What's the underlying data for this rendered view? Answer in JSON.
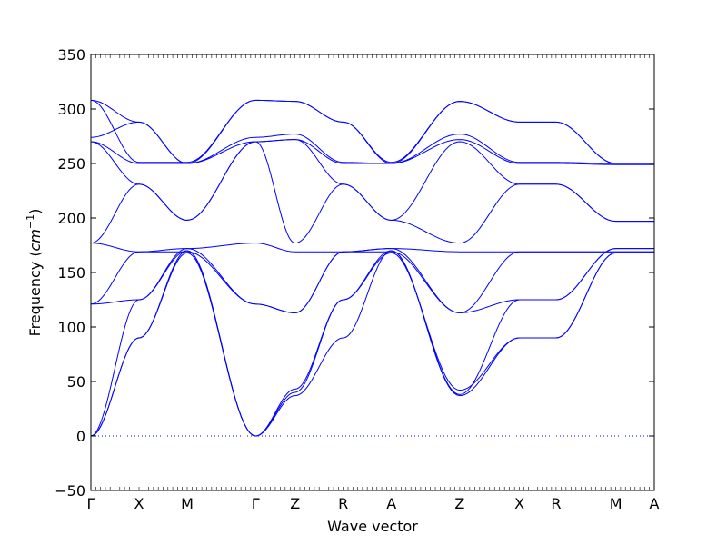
{
  "chart_data": {
    "type": "line",
    "title": "",
    "xlabel": "Wave vector",
    "ylabel": "Frequency ($cm^{-1}$)",
    "ylabel_text": "Frequency (",
    "ylabel_unit": "cm",
    "ylabel_exp": "−1",
    "ylabel_close": ")",
    "ylim": [
      -50,
      350
    ],
    "yticks": [
      -50,
      0,
      50,
      100,
      150,
      200,
      250,
      300,
      350
    ],
    "ytick_labels": [
      "−50",
      "0",
      "50",
      "100",
      "150",
      "200",
      "250",
      "300",
      "350"
    ],
    "xlim": [
      0,
      11.7
    ],
    "high_symmetry_points": [
      {
        "label": "Γ",
        "x": 0
      },
      {
        "label": "X",
        "x": 1.0
      },
      {
        "label": "M",
        "x": 2.0
      },
      {
        "label": "Γ",
        "x": 3.42
      },
      {
        "label": "Z",
        "x": 4.24
      },
      {
        "label": "R",
        "x": 5.24
      },
      {
        "label": "A",
        "x": 6.24
      },
      {
        "label": "Z",
        "x": 7.66
      },
      {
        "label": "X",
        "x": 8.9
      },
      {
        "label": "R",
        "x": 9.66
      },
      {
        "label": "M",
        "x": 10.9
      },
      {
        "label": "A",
        "x": 11.7
      }
    ],
    "grid": false,
    "line_color": "#0000ff",
    "zero_line_color": "#0000ff",
    "series": [
      {
        "values": [
          [
            0,
            0
          ],
          [
            1.0,
            90
          ],
          [
            2.0,
            170
          ],
          [
            3.42,
            0
          ],
          [
            4.24,
            37
          ],
          [
            5.24,
            90
          ],
          [
            6.24,
            170
          ],
          [
            7.66,
            37
          ],
          [
            8.9,
            90
          ],
          [
            9.66,
            90
          ],
          [
            10.9,
            168
          ],
          [
            11.7,
            168
          ]
        ]
      },
      {
        "values": [
          [
            0,
            0
          ],
          [
            1.0,
            90
          ],
          [
            2.0,
            168
          ],
          [
            3.42,
            0
          ],
          [
            4.24,
            40
          ],
          [
            5.24,
            125
          ],
          [
            6.24,
            168
          ],
          [
            7.66,
            42
          ],
          [
            8.9,
            90
          ],
          [
            9.66,
            90
          ],
          [
            10.9,
            168
          ],
          [
            11.7,
            168
          ]
        ]
      },
      {
        "values": [
          [
            0,
            0
          ],
          [
            1.0,
            125
          ],
          [
            2.0,
            170
          ],
          [
            3.42,
            0
          ],
          [
            4.24,
            43
          ],
          [
            5.24,
            125
          ],
          [
            6.24,
            170
          ],
          [
            7.66,
            38
          ],
          [
            8.9,
            125
          ],
          [
            9.66,
            125
          ],
          [
            10.9,
            172
          ],
          [
            11.7,
            172
          ]
        ]
      },
      {
        "values": [
          [
            0,
            121
          ],
          [
            1.0,
            125
          ],
          [
            2.0,
            172
          ],
          [
            3.42,
            121
          ],
          [
            4.24,
            113
          ],
          [
            5.24,
            169
          ],
          [
            6.24,
            172
          ],
          [
            7.66,
            113
          ],
          [
            8.9,
            125
          ],
          [
            9.66,
            125
          ],
          [
            10.9,
            172
          ],
          [
            11.7,
            172
          ]
        ]
      },
      {
        "values": [
          [
            0,
            121
          ],
          [
            1.0,
            169
          ],
          [
            2.0,
            169
          ],
          [
            3.42,
            121
          ],
          [
            4.24,
            113
          ],
          [
            5.24,
            169
          ],
          [
            6.24,
            169
          ],
          [
            7.66,
            113
          ],
          [
            8.9,
            169
          ],
          [
            9.66,
            169
          ],
          [
            10.9,
            169
          ],
          [
            11.7,
            169
          ]
        ]
      },
      {
        "values": [
          [
            0,
            177
          ],
          [
            1.0,
            169
          ],
          [
            2.0,
            172
          ],
          [
            3.42,
            177
          ],
          [
            4.24,
            169
          ],
          [
            5.24,
            169
          ],
          [
            6.24,
            172
          ],
          [
            7.66,
            169
          ],
          [
            8.9,
            169
          ],
          [
            9.66,
            169
          ],
          [
            10.9,
            169
          ],
          [
            11.7,
            169
          ]
        ]
      },
      {
        "values": [
          [
            0,
            177
          ],
          [
            1.0,
            231
          ],
          [
            2.0,
            198
          ],
          [
            3.42,
            270
          ],
          [
            4.24,
            177
          ],
          [
            5.24,
            231
          ],
          [
            6.24,
            198
          ],
          [
            7.66,
            177
          ],
          [
            8.9,
            231
          ],
          [
            9.66,
            231
          ],
          [
            10.9,
            197
          ],
          [
            11.7,
            197
          ]
        ]
      },
      {
        "values": [
          [
            0,
            270
          ],
          [
            1.0,
            231
          ],
          [
            2.0,
            198
          ],
          [
            3.42,
            270
          ],
          [
            4.24,
            272
          ],
          [
            5.24,
            231
          ],
          [
            6.24,
            198
          ],
          [
            7.66,
            270
          ],
          [
            8.9,
            231
          ],
          [
            9.66,
            231
          ],
          [
            10.9,
            197
          ],
          [
            11.7,
            197
          ]
        ]
      },
      {
        "values": [
          [
            0,
            270
          ],
          [
            1.0,
            250
          ],
          [
            2.0,
            250
          ],
          [
            3.42,
            270
          ],
          [
            4.24,
            272
          ],
          [
            5.24,
            250
          ],
          [
            6.24,
            250
          ],
          [
            7.66,
            272
          ],
          [
            8.9,
            250
          ],
          [
            9.66,
            250
          ],
          [
            10.9,
            249
          ],
          [
            11.7,
            249
          ]
        ]
      },
      {
        "values": [
          [
            0,
            274
          ],
          [
            1.0,
            288
          ],
          [
            2.0,
            250
          ],
          [
            3.42,
            274
          ],
          [
            4.24,
            277
          ],
          [
            5.24,
            251
          ],
          [
            6.24,
            250
          ],
          [
            7.66,
            277
          ],
          [
            8.9,
            251
          ],
          [
            9.66,
            251
          ],
          [
            10.9,
            250
          ],
          [
            11.7,
            250
          ]
        ]
      },
      {
        "values": [
          [
            0,
            308
          ],
          [
            1.0,
            288
          ],
          [
            2.0,
            250
          ],
          [
            3.42,
            308
          ],
          [
            4.24,
            307
          ],
          [
            5.24,
            288
          ],
          [
            6.24,
            250
          ],
          [
            7.66,
            307
          ],
          [
            8.9,
            288
          ],
          [
            9.66,
            288
          ],
          [
            10.9,
            250
          ],
          [
            11.7,
            250
          ]
        ]
      },
      {
        "values": [
          [
            0,
            308
          ],
          [
            1.0,
            251
          ],
          [
            2.0,
            251
          ],
          [
            3.42,
            308
          ],
          [
            4.24,
            307
          ],
          [
            5.24,
            288
          ],
          [
            6.24,
            251
          ],
          [
            7.66,
            307
          ],
          [
            8.9,
            288
          ],
          [
            9.66,
            288
          ],
          [
            10.9,
            250
          ],
          [
            11.7,
            250
          ]
        ]
      }
    ]
  }
}
